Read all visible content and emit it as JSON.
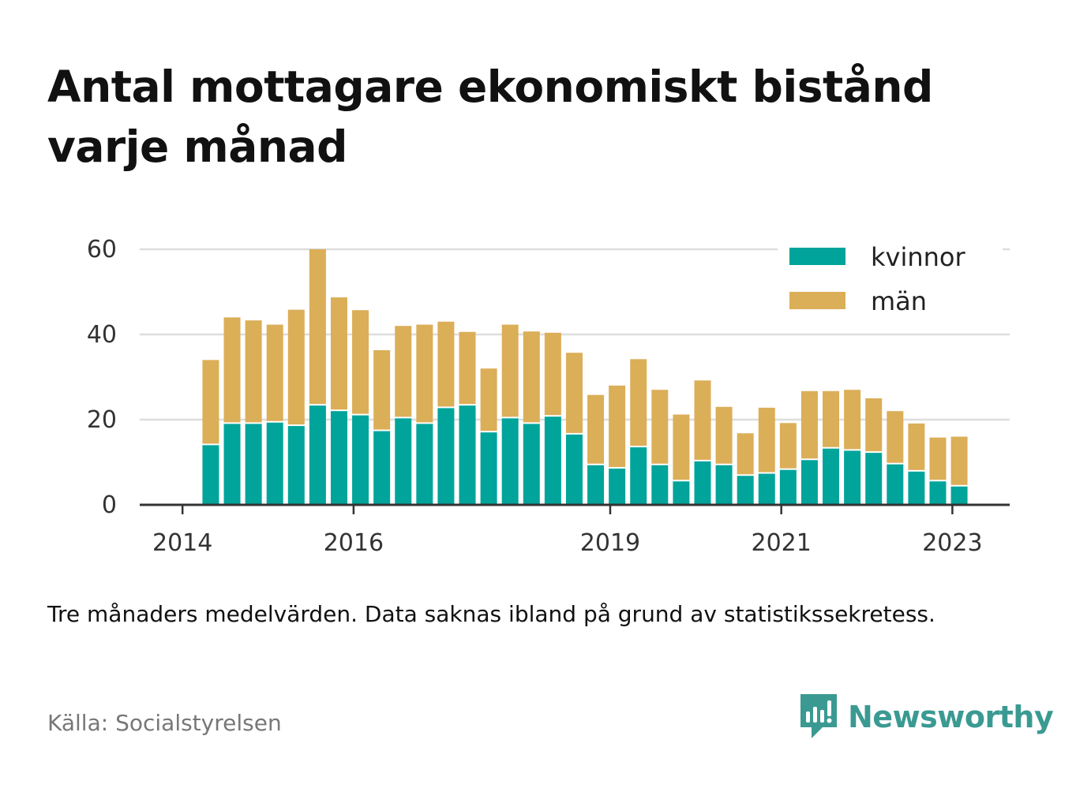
{
  "title": "Antal mottagare ekonomiskt bistånd varje månad",
  "note": "Tre månaders medelvärden. Data saknas ibland på grund av statistikssekretess.",
  "source": "Källa: Socialstyrelsen",
  "brand": "Newsworthy",
  "colors": {
    "kvinnor": "#00a49a",
    "man": "#dbae58",
    "grid": "#dddddd",
    "axis": "#333333",
    "brand": "#3a9a92"
  },
  "chart_data": {
    "type": "bar",
    "stacked": true,
    "x_ticks": [
      "2014",
      "2016",
      "2019",
      "2021",
      "2023"
    ],
    "x_tick_positions": [
      2014.0,
      2016.0,
      2019.0,
      2021.0,
      2023.0
    ],
    "x_range": [
      2013.5,
      2023.67
    ],
    "y_ticks": [
      0,
      20,
      40,
      60
    ],
    "ylim": [
      0,
      60
    ],
    "grid": true,
    "legend_position": "top-right",
    "x": [
      2014.33,
      2014.58,
      2014.83,
      2015.08,
      2015.33,
      2015.58,
      2015.83,
      2016.08,
      2016.33,
      2016.58,
      2016.83,
      2017.08,
      2017.33,
      2017.58,
      2017.83,
      2018.08,
      2018.33,
      2018.58,
      2018.83,
      2019.08,
      2019.33,
      2019.58,
      2019.83,
      2020.08,
      2020.33,
      2020.58,
      2020.83,
      2021.08,
      2021.33,
      2021.58,
      2021.83,
      2022.08,
      2022.33,
      2022.58,
      2022.83,
      2023.08
    ],
    "series": [
      {
        "name": "kvinnor",
        "values": [
          14,
          19,
          19,
          19.3,
          18.5,
          23.3,
          22,
          21,
          17.3,
          20.3,
          19,
          22.7,
          23.3,
          17,
          20.3,
          19,
          20.7,
          16.5,
          9.3,
          8.5,
          13.5,
          9.3,
          5.5,
          10.2,
          9.3,
          6.8,
          7.3,
          8.2,
          10.5,
          13.2,
          12.7,
          12.2,
          9.5,
          7.8,
          5.5,
          4.3
        ]
      },
      {
        "name": "män",
        "values": [
          20,
          25,
          24.3,
          23,
          27.3,
          36.7,
          26.7,
          24.7,
          19,
          21.7,
          23.3,
          20.3,
          17.3,
          15,
          22,
          21.7,
          19.7,
          19.2,
          16.5,
          19.5,
          20.7,
          17.7,
          15.7,
          19,
          13.7,
          10,
          15.5,
          11,
          16.2,
          13.5,
          14.3,
          12.8,
          12.5,
          11.3,
          10.3,
          11.7
        ]
      }
    ]
  }
}
